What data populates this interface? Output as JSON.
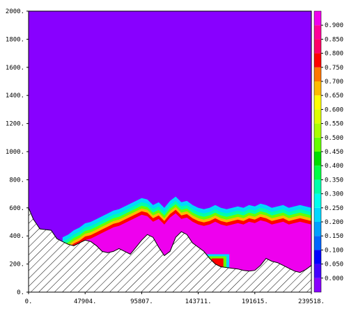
{
  "chart_data": {
    "type": "heatmap",
    "title": "",
    "xlabel": "",
    "ylabel": "",
    "xlim": [
      0,
      239518
    ],
    "ylim": [
      0,
      2000
    ],
    "x_ticks": [
      "0.",
      "47904.",
      "95807.",
      "143711.",
      "191615.",
      "239518."
    ],
    "y_ticks": [
      "0.",
      "200.",
      "400.",
      "600.",
      "800.",
      "1000.",
      "1200.",
      "1400.",
      "1600.",
      "1800.",
      "2000."
    ],
    "grid": false,
    "colorbar": {
      "position": "right",
      "levels": [
        "0.000",
        "0.050",
        "0.100",
        "0.150",
        "0.200",
        "0.250",
        "0.300",
        "0.350",
        "0.400",
        "0.450",
        "0.500",
        "0.550",
        "0.600",
        "0.650",
        "0.700",
        "0.750",
        "0.800",
        "0.850",
        "0.900"
      ],
      "colors": [
        "#8800ff",
        "#4400ff",
        "#0000ff",
        "#0066ff",
        "#00a0ff",
        "#00d8ff",
        "#00ffee",
        "#00ffaa",
        "#00ff44",
        "#00dd00",
        "#66ff00",
        "#aaff00",
        "#ddff00",
        "#ffff00",
        "#ffbb00",
        "#ff7700",
        "#ff0000",
        "#ff0066",
        "#ff0099",
        "#ee00ee"
      ]
    },
    "series": [
      {
        "role": "terrain",
        "x": [
          0,
          4000,
          9600,
          14400,
          19200,
          24000,
          28800,
          33600,
          38300,
          43100,
          47900,
          52700,
          57500,
          62300,
          67100,
          71900,
          76600,
          81400,
          86200,
          91000,
          95800,
          100600,
          105400,
          110200,
          115000,
          119800,
          124600,
          129400,
          134100,
          138900,
          143700,
          148500,
          153300,
          158100,
          162900,
          167700,
          172500,
          177200,
          182000,
          186800,
          191600,
          196400,
          201200,
          206000,
          210800,
          215600,
          220400,
          225100,
          229900,
          234700,
          239518
        ],
        "y": [
          600,
          520,
          450,
          445,
          440,
          380,
          360,
          340,
          330,
          350,
          370,
          360,
          330,
          290,
          280,
          290,
          310,
          290,
          270,
          320,
          370,
          410,
          390,
          320,
          260,
          290,
          390,
          430,
          410,
          350,
          320,
          290,
          240,
          200,
          180,
          175,
          170,
          165,
          155,
          150,
          155,
          190,
          240,
          220,
          210,
          190,
          170,
          150,
          140,
          160,
          190
        ]
      },
      {
        "role": "field-top",
        "x": [
          28800,
          33600,
          38300,
          43100,
          47900,
          52700,
          57500,
          62300,
          67100,
          71900,
          76600,
          81400,
          86200,
          91000,
          95800,
          100600,
          105400,
          110200,
          115000,
          119800,
          124600,
          129400,
          134100,
          138900,
          143700,
          148500,
          153300,
          158100,
          162900,
          167700,
          172500,
          177200,
          182000,
          186800,
          191600,
          196400,
          201200,
          206000,
          210800,
          215600,
          220400,
          225100,
          229900,
          234700,
          239518
        ],
        "y": [
          390,
          410,
          440,
          460,
          490,
          500,
          520,
          540,
          560,
          580,
          590,
          610,
          630,
          650,
          670,
          660,
          620,
          640,
          600,
          650,
          680,
          640,
          650,
          620,
          600,
          590,
          600,
          620,
          600,
          590,
          600,
          610,
          600,
          620,
          610,
          630,
          620,
          600,
          610,
          620,
          600,
          610,
          620,
          610,
          600
        ]
      }
    ]
  }
}
